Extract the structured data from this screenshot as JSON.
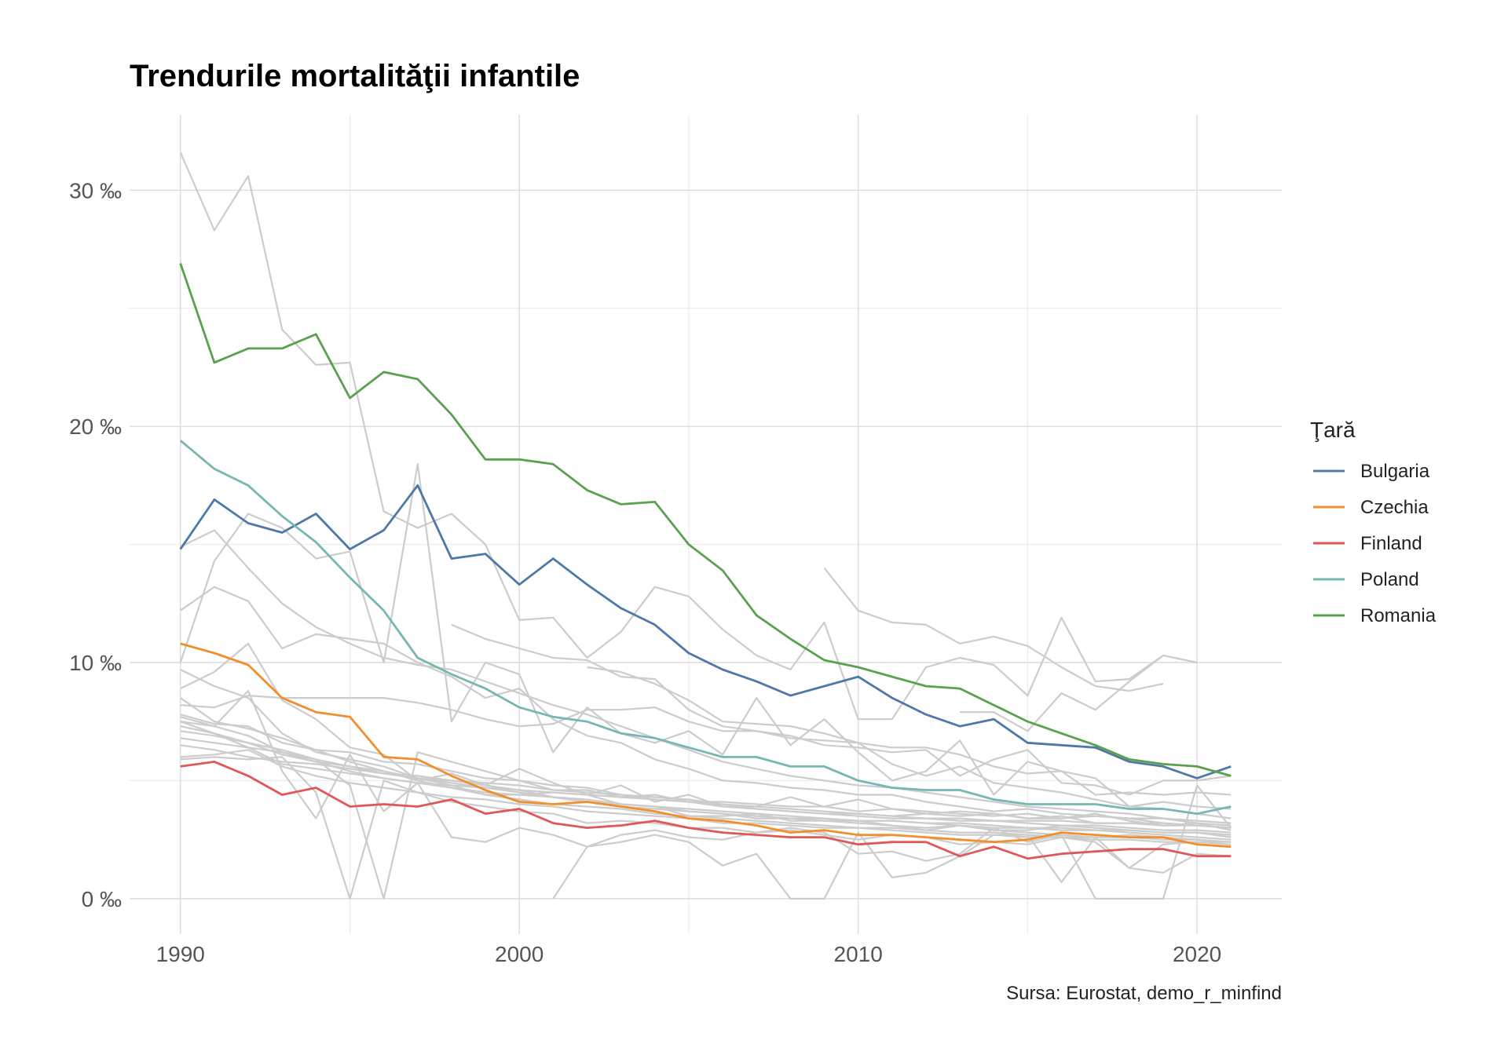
{
  "chart_data": {
    "type": "line",
    "title": "Trendurile mortalităţii infantile",
    "caption": "Sursa: Eurostat, demo_r_minfind",
    "xlabel": "",
    "ylabel": "",
    "xlim": [
      1988.5,
      2022.5
    ],
    "ylim": [
      -1.5,
      33.2
    ],
    "x_ticks": [
      1990,
      2000,
      2010,
      2020
    ],
    "x_tick_labels": [
      "1990",
      "2000",
      "2010",
      "2020"
    ],
    "y_ticks": [
      0,
      10,
      20,
      30
    ],
    "y_tick_labels": [
      "0 ‰",
      "10 ‰",
      "20 ‰",
      "30 ‰"
    ],
    "grid": true,
    "legend": {
      "title": "Ţară",
      "position": "right"
    },
    "x": [
      1990,
      1991,
      1992,
      1993,
      1994,
      1995,
      1996,
      1997,
      1998,
      1999,
      2000,
      2001,
      2002,
      2003,
      2004,
      2005,
      2006,
      2007,
      2008,
      2009,
      2010,
      2011,
      2012,
      2013,
      2014,
      2015,
      2016,
      2017,
      2018,
      2019,
      2020,
      2021
    ],
    "series": [
      {
        "name": "Bulgaria",
        "color": "#4e79a7",
        "values": [
          14.8,
          16.9,
          15.9,
          15.5,
          16.3,
          14.8,
          15.6,
          17.5,
          14.4,
          14.6,
          13.3,
          14.4,
          13.3,
          12.3,
          11.6,
          10.4,
          9.7,
          9.2,
          8.6,
          9.0,
          9.4,
          8.5,
          7.8,
          7.3,
          7.6,
          6.6,
          6.5,
          6.4,
          5.8,
          5.6,
          5.1,
          5.6
        ]
      },
      {
        "name": "Czechia",
        "color": "#f28e2b",
        "values": [
          10.8,
          10.4,
          9.9,
          8.5,
          7.9,
          7.7,
          6.0,
          5.9,
          5.2,
          4.6,
          4.1,
          4.0,
          4.1,
          3.9,
          3.7,
          3.4,
          3.3,
          3.1,
          2.8,
          2.9,
          2.7,
          2.7,
          2.6,
          2.5,
          2.4,
          2.5,
          2.8,
          2.7,
          2.6,
          2.6,
          2.3,
          2.2
        ]
      },
      {
        "name": "Finland",
        "color": "#e15759",
        "values": [
          5.6,
          5.8,
          5.2,
          4.4,
          4.7,
          3.9,
          4.0,
          3.9,
          4.2,
          3.6,
          3.8,
          3.2,
          3.0,
          3.1,
          3.3,
          3.0,
          2.8,
          2.7,
          2.6,
          2.6,
          2.3,
          2.4,
          2.4,
          1.8,
          2.2,
          1.7,
          1.9,
          2.0,
          2.1,
          2.1,
          1.8,
          1.8
        ]
      },
      {
        "name": "Poland",
        "color": "#76b7b2",
        "values": [
          19.4,
          18.2,
          17.5,
          16.2,
          15.1,
          13.6,
          12.2,
          10.2,
          9.5,
          8.9,
          8.1,
          7.7,
          7.5,
          7.0,
          6.8,
          6.4,
          6.0,
          6.0,
          5.6,
          5.6,
          5.0,
          4.7,
          4.6,
          4.6,
          4.2,
          4.0,
          4.0,
          4.0,
          3.8,
          3.8,
          3.6,
          3.9
        ]
      },
      {
        "name": "Romania",
        "color": "#59a14f",
        "values": [
          26.9,
          22.7,
          23.3,
          23.3,
          23.9,
          21.2,
          22.3,
          22.0,
          20.5,
          18.6,
          18.6,
          18.4,
          17.3,
          16.7,
          16.8,
          15.0,
          13.9,
          12.0,
          11.0,
          10.1,
          9.8,
          9.4,
          9.0,
          8.9,
          8.2,
          7.5,
          7.0,
          6.5,
          5.9,
          5.7,
          5.6,
          5.2
        ]
      }
    ],
    "background_series": [
      {
        "values": [
          31.6,
          28.3,
          30.6,
          24.1,
          22.6,
          22.7,
          16.4,
          15.7,
          16.3,
          15.0,
          11.8,
          11.9,
          10.2,
          11.3,
          13.2,
          12.8,
          11.4,
          10.3,
          9.7,
          11.7,
          7.6,
          7.6,
          9.8,
          10.2,
          9.9,
          8.6,
          11.9,
          9.2,
          9.3,
          10.3,
          10.0,
          null
        ]
      },
      {
        "values": [
          10.0,
          14.3,
          16.3,
          15.7,
          14.4,
          14.7,
          10.0,
          18.4,
          7.5,
          10.0,
          9.5,
          6.2,
          8.1,
          7.0,
          6.6,
          7.1,
          6.1,
          8.5,
          6.5,
          7.6,
          6.2,
          5.0,
          5.4,
          6.7,
          4.4,
          5.8,
          5.4,
          5.1,
          3.9,
          4.1,
          3.9,
          3.8
        ]
      },
      {
        "values": [
          12.2,
          13.2,
          12.6,
          10.6,
          11.2,
          11.0,
          10.8,
          10.0,
          9.4,
          8.5,
          8.9,
          7.6,
          6.9,
          6.6,
          5.9,
          5.5,
          5.0,
          4.9,
          4.7,
          4.6,
          4.4,
          4.4,
          4.1,
          3.9,
          3.7,
          3.8,
          3.6,
          3.5,
          3.4,
          3.2,
          3.1,
          3.0
        ]
      },
      {
        "values": [
          14.9,
          15.6,
          14.0,
          12.5,
          11.5,
          10.8,
          10.2,
          9.9,
          9.7,
          9.2,
          8.7,
          8.2,
          7.8,
          7.3,
          6.8,
          6.3,
          5.8,
          5.5,
          5.2,
          5.0,
          4.8,
          4.7,
          4.5,
          4.3,
          4.1,
          3.9,
          3.8,
          3.7,
          3.6,
          3.4,
          3.3,
          3.2
        ]
      },
      {
        "values": [
          9.7,
          9.0,
          8.5,
          7.0,
          6.2,
          5.9,
          5.6,
          5.1,
          4.8,
          4.7,
          4.6,
          4.3,
          4.1,
          4.0,
          3.9,
          3.7,
          3.6,
          3.4,
          3.4,
          3.3,
          3.2,
          3.1,
          3.0,
          3.1,
          2.9,
          2.8,
          2.7,
          2.6,
          2.7,
          2.6,
          2.5,
          2.4
        ]
      },
      {
        "values": [
          7.5,
          7.3,
          6.9,
          6.2,
          5.8,
          5.4,
          5.1,
          4.9,
          4.7,
          4.5,
          4.4,
          4.3,
          4.1,
          3.9,
          3.8,
          3.7,
          3.6,
          3.5,
          3.4,
          3.4,
          3.3,
          3.3,
          3.2,
          3.1,
          3.0,
          3.0,
          2.9,
          2.9,
          2.8,
          2.7,
          2.6,
          2.5
        ]
      },
      {
        "values": [
          8.2,
          8.1,
          8.6,
          8.5,
          8.5,
          8.5,
          8.5,
          8.3,
          8.0,
          7.6,
          7.3,
          7.4,
          8.0,
          8.0,
          8.1,
          7.5,
          7.1,
          7.1,
          6.9,
          6.5,
          6.4,
          6.2,
          6.3,
          5.2,
          5.9,
          6.3,
          4.9,
          4.8,
          4.4,
          5.0,
          5.0,
          5.2
        ]
      },
      {
        "values": [
          7.8,
          7.4,
          7.3,
          6.6,
          6.3,
          6.2,
          5.8,
          5.7,
          5.4,
          5.1,
          5.0,
          4.8,
          4.7,
          4.4,
          4.3,
          4.2,
          4.0,
          3.8,
          3.7,
          3.6,
          3.6,
          3.5,
          3.6,
          3.7,
          3.6,
          3.4,
          3.5,
          3.2,
          3.2,
          3.2,
          3.1,
          3.0
        ]
      },
      {
        "values": [
          7.1,
          6.9,
          6.6,
          6.1,
          5.8,
          5.6,
          5.3,
          5.2,
          5.0,
          4.9,
          4.8,
          4.6,
          4.5,
          4.4,
          4.2,
          4.1,
          3.9,
          3.8,
          3.7,
          3.6,
          3.5,
          3.4,
          3.4,
          3.3,
          3.3,
          3.2,
          3.1,
          3.1,
          3.0,
          2.9,
          2.9,
          2.8
        ]
      },
      {
        "values": [
          6.8,
          6.6,
          6.4,
          6.2,
          5.9,
          5.6,
          5.4,
          5.1,
          4.9,
          4.7,
          4.5,
          4.3,
          4.2,
          4.0,
          3.9,
          3.8,
          3.7,
          3.6,
          3.5,
          3.4,
          3.3,
          3.3,
          3.2,
          3.2,
          3.1,
          3.0,
          3.0,
          2.9,
          2.9,
          2.8,
          2.8,
          2.7
        ]
      },
      {
        "values": [
          8.9,
          9.6,
          10.8,
          8.4,
          7.6,
          6.4,
          6.1,
          5.0,
          5.3,
          4.8,
          5.5,
          4.9,
          4.4,
          4.8,
          4.1,
          4.4,
          3.9,
          3.9,
          4.3,
          3.9,
          4.2,
          3.8,
          3.6,
          3.5,
          3.6,
          3.4,
          3.4,
          3.6,
          3.3,
          3.1,
          3.2,
          2.9
        ]
      },
      {
        "values": [
          6.5,
          6.3,
          6.0,
          5.8,
          5.7,
          5.5,
          5.3,
          5.1,
          5.0,
          4.8,
          4.6,
          4.5,
          4.4,
          4.3,
          4.2,
          4.1,
          4.0,
          3.9,
          3.8,
          3.7,
          3.6,
          3.5,
          3.4,
          3.4,
          3.3,
          3.3,
          3.3,
          3.2,
          3.2,
          3.1,
          3.1,
          3.0
        ]
      },
      {
        "values": [
          7.3,
          7.0,
          6.4,
          5.7,
          5.5,
          5.3,
          5.1,
          4.9,
          4.8,
          4.4,
          4.4,
          4.5,
          4.4,
          4.0,
          3.9,
          3.5,
          3.5,
          3.6,
          3.3,
          3.3,
          3.3,
          3.1,
          2.9,
          3.1,
          2.9,
          2.9,
          3.1,
          3.0,
          2.9,
          2.8,
          2.8,
          2.6
        ]
      },
      {
        "values": [
          8.5,
          7.5,
          7.2,
          6.8,
          6.3,
          5.8,
          5.4,
          5.0,
          4.7,
          4.4,
          4.2,
          4.0,
          3.9,
          3.8,
          3.6,
          3.5,
          3.4,
          3.3,
          3.2,
          3.1,
          3.0,
          3.0,
          2.9,
          2.8,
          2.8,
          2.7,
          2.6,
          2.6,
          2.6,
          2.5,
          2.5,
          2.4
        ]
      },
      {
        "values": [
          6.0,
          6.1,
          6.3,
          5.6,
          5.2,
          4.9,
          4.7,
          4.5,
          4.3,
          4.2,
          4.0,
          3.9,
          3.7,
          3.6,
          3.5,
          3.4,
          3.2,
          3.2,
          3.1,
          3.0,
          3.0,
          2.9,
          2.8,
          2.7,
          2.7,
          2.6,
          2.6,
          2.5,
          2.5,
          2.4,
          2.4,
          2.3
        ]
      },
      {
        "values": [
          null,
          null,
          null,
          null,
          null,
          null,
          null,
          null,
          11.6,
          11.0,
          10.6,
          10.2,
          10.1,
          9.4,
          9.3,
          8.0,
          7.3,
          7.1,
          6.8,
          6.7,
          6.6,
          5.7,
          5.2,
          5.6,
          4.9,
          4.7,
          4.5,
          4.2,
          3.9,
          3.8,
          3.6,
          3.4
        ]
      },
      {
        "values": [
          null,
          null,
          null,
          null,
          null,
          null,
          null,
          null,
          null,
          null,
          null,
          null,
          9.8,
          9.6,
          9.1,
          8.4,
          7.5,
          7.4,
          7.3,
          7.0,
          6.6,
          6.4,
          6.4,
          6.1,
          5.6,
          5.3,
          5.4,
          4.4,
          4.5,
          4.4,
          4.5,
          4.4
        ]
      },
      {
        "values": [
          null,
          null,
          null,
          null,
          null,
          null,
          null,
          null,
          null,
          null,
          null,
          null,
          null,
          null,
          null,
          null,
          null,
          null,
          null,
          14.0,
          12.2,
          11.7,
          11.6,
          10.8,
          11.1,
          10.7,
          9.8,
          9.0,
          8.8,
          9.1,
          null,
          null
        ]
      },
      {
        "values": [
          null,
          null,
          null,
          null,
          null,
          null,
          null,
          null,
          null,
          null,
          null,
          null,
          null,
          null,
          null,
          null,
          null,
          null,
          null,
          null,
          null,
          null,
          null,
          7.9,
          7.9,
          7.1,
          8.7,
          8.0,
          9.2,
          10.3,
          null,
          null
        ]
      },
      {
        "values": [
          7.5,
          7.0,
          6.6,
          6.3,
          5.9,
          4.8,
          0.0,
          6.2,
          5.8,
          5.4,
          5.0,
          4.6,
          4.6,
          4.3,
          4.4,
          4.1,
          4.1,
          4.0,
          3.9,
          3.9,
          3.7,
          3.8,
          3.7,
          3.6,
          3.5,
          3.6,
          3.4,
          3.5,
          3.4,
          3.4,
          3.2,
          3.1
        ]
      },
      {
        "values": [
          5.9,
          6.0,
          5.9,
          6.0,
          4.5,
          0.0,
          5.0,
          4.5,
          4.1,
          3.9,
          3.7,
          3.6,
          3.2,
          3.3,
          3.2,
          3.0,
          3.0,
          2.8,
          2.9,
          2.7,
          2.5,
          2.7,
          2.6,
          2.3,
          2.4,
          2.3,
          2.6,
          2.4,
          1.3,
          2.3,
          2.4,
          2.4
        ]
      },
      {
        "values": [
          7.7,
          7.3,
          8.8,
          5.4,
          3.4,
          6.1,
          3.7,
          4.9,
          2.6,
          2.4,
          3.0,
          2.7,
          2.2,
          2.4,
          2.7,
          2.4,
          1.4,
          1.9,
          0.0,
          0.0,
          2.8,
          0.9,
          1.1,
          1.8,
          2.7,
          2.7,
          0.7,
          2.6,
          1.3,
          1.1,
          1.9,
          1.8
        ]
      },
      {
        "values": [
          null,
          null,
          null,
          null,
          null,
          null,
          null,
          null,
          null,
          null,
          null,
          0.0,
          2.2,
          2.7,
          2.9,
          2.6,
          2.5,
          2.8,
          3.0,
          2.8,
          1.9,
          2.0,
          1.6,
          1.9,
          3.0,
          2.4,
          2.7,
          0.0,
          0.0,
          0.0,
          4.8,
          3.0
        ]
      }
    ]
  }
}
